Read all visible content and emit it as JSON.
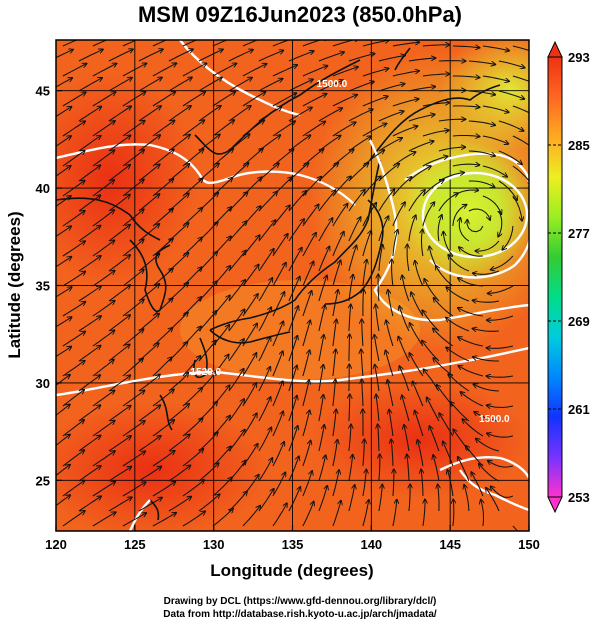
{
  "title": "MSM 09Z16Jun2023 (850.0hPa)",
  "map": {
    "lon_range": [
      120,
      150
    ],
    "lat_range": [
      22.4,
      47.6
    ],
    "x_axis": {
      "label": "Longitude (degrees)",
      "ticks": [
        {
          "value": 120,
          "label": "120"
        },
        {
          "value": 125,
          "label": "125"
        },
        {
          "value": 130,
          "label": "130"
        },
        {
          "value": 135,
          "label": "135"
        },
        {
          "value": 140,
          "label": "140"
        },
        {
          "value": 145,
          "label": "145"
        },
        {
          "value": 150,
          "label": "150"
        }
      ]
    },
    "y_axis": {
      "label": "Latitude  (degrees)",
      "ticks": [
        {
          "value": 25,
          "label": "25"
        },
        {
          "value": 30,
          "label": "30"
        },
        {
          "value": 35,
          "label": "35"
        },
        {
          "value": 40,
          "label": "40"
        },
        {
          "value": 45,
          "label": "45"
        }
      ]
    },
    "grid": true,
    "contour_labels": [
      {
        "text": "1500.0",
        "lon": 137.5,
        "lat": 45.2
      },
      {
        "text": "1520.0",
        "lon": 129.5,
        "lat": 30.4
      },
      {
        "text": "1500.0",
        "lon": 147.8,
        "lat": 28.0
      }
    ]
  },
  "colorbar": {
    "range": [
      253,
      293
    ],
    "ticks": [
      {
        "value": 293,
        "label": "293"
      },
      {
        "value": 285,
        "label": "285"
      },
      {
        "value": 277,
        "label": "277"
      },
      {
        "value": 269,
        "label": "269"
      },
      {
        "value": 261,
        "label": "261"
      },
      {
        "value": 253,
        "label": "253"
      }
    ],
    "colors": [
      "#ff33cc",
      "#7733ff",
      "#1133ff",
      "#0088ff",
      "#00ccdd",
      "#00dd88",
      "#33cc33",
      "#99ee22",
      "#eeee22",
      "#ffaa22",
      "#ff6622",
      "#ee3311"
    ]
  },
  "credits": [
    "Drawing by DCL (https://www.gfd-dennou.org/library/dcl/)",
    "Data from http://database.rish.kyoto-u.ac.jp/arch/jmadata/"
  ]
}
